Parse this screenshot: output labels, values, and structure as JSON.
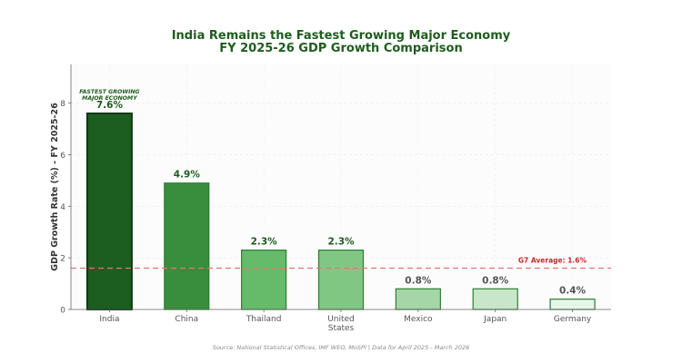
{
  "title_line1": "India Remains the Fastest Growing Major Economy",
  "title_line2": "FY 2025-26 GDP Growth Comparison",
  "source": "Source: National Statistical Offices, IMF WEO, MoSPI | Data for April 2025 - March 2026",
  "colors": {
    "title": "#1e5c1e",
    "bars": [
      "#1b5e20",
      "#388e3c",
      "#66bb6a",
      "#81c784",
      "#a5d6a7",
      "#c8e6c9",
      "#e8f5e9"
    ],
    "bar_edge": "#2e7d32",
    "reference_line": "#e57373",
    "reference_label": "#c62828"
  },
  "chart_data": {
    "type": "bar",
    "categories": [
      "India",
      "China",
      "Thailand",
      "United\nStates",
      "Mexico",
      "Japan",
      "Germany"
    ],
    "values": [
      7.6,
      4.9,
      2.3,
      2.3,
      0.8,
      0.8,
      0.4
    ],
    "value_labels": [
      "7.6%",
      "4.9%",
      "2.3%",
      "2.3%",
      "0.8%",
      "0.8%",
      "0.4%"
    ],
    "ylabel": "GDP Growth Rate (%) - FY 2025-26",
    "xlabel": "",
    "ylim": [
      0,
      9.5
    ],
    "yticks": [
      0,
      2,
      4,
      6,
      8
    ],
    "grid": true,
    "reference_line": {
      "value": 1.6,
      "label": "G7 Average: 1.6%"
    },
    "annotation": {
      "category": "India",
      "lines": [
        "FASTEST GROWING",
        "MAJOR ECONOMY"
      ]
    }
  }
}
